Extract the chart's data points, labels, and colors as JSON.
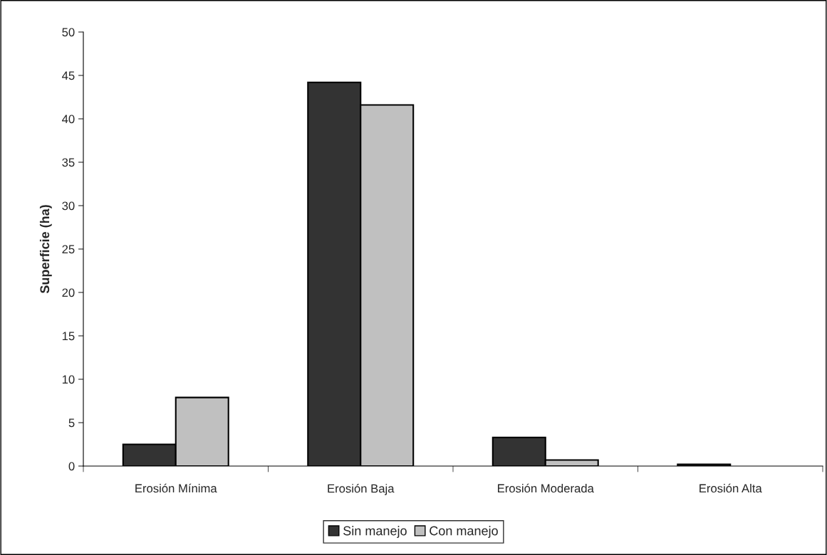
{
  "chart_data": {
    "type": "bar",
    "ylabel": "Superficie (ha)",
    "categories": [
      "Erosión Mínima",
      "Erosión Baja",
      "Erosión Moderada",
      "Erosión Alta"
    ],
    "series": [
      {
        "name": "Sin manejo",
        "color": "#333333",
        "values": [
          2.5,
          44.2,
          3.3,
          0.2
        ]
      },
      {
        "name": "Con manejo",
        "color": "#c0c0c0",
        "values": [
          7.9,
          41.6,
          0.7,
          null
        ]
      }
    ],
    "ylim": [
      0,
      50
    ],
    "yticks": [
      0,
      5,
      10,
      15,
      20,
      25,
      30,
      35,
      40,
      45,
      50
    ],
    "grid": false,
    "legend": "bottom"
  }
}
